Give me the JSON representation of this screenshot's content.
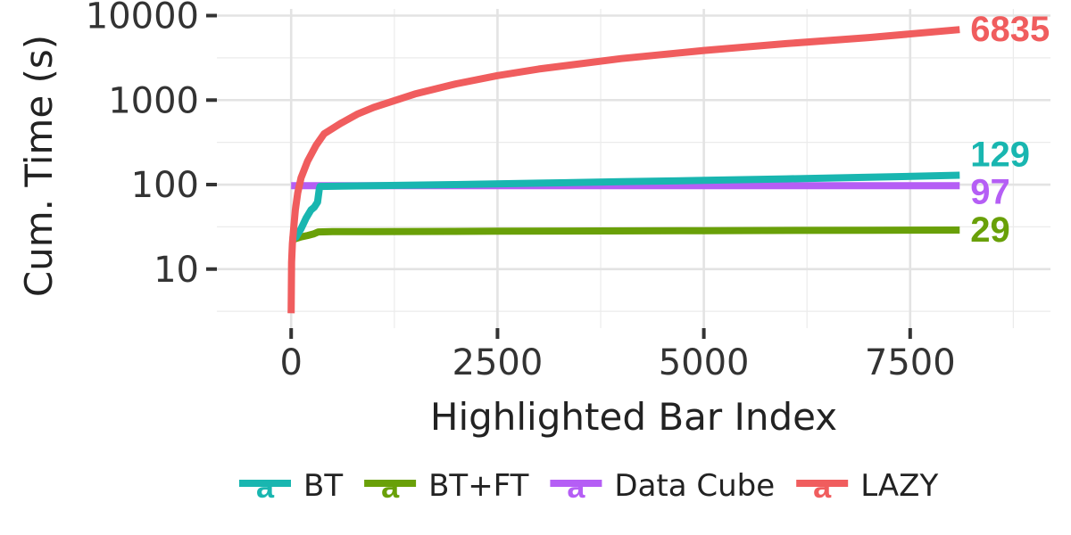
{
  "chart_data": {
    "type": "line",
    "title": "",
    "xlabel": "Highlighted Bar Index",
    "ylabel": "Cum. Time (s)",
    "xlim": [
      -900,
      9200
    ],
    "ylim": [
      2,
      12000
    ],
    "y_scale": "log10",
    "grid": true,
    "legend_position": "bottom",
    "x_ticks": [
      0,
      2500,
      5000,
      7500
    ],
    "x_tick_labels": [
      "0",
      "2500",
      "5000",
      "7500"
    ],
    "y_ticks": [
      10,
      100,
      1000,
      10000
    ],
    "y_tick_labels": [
      "10",
      "100",
      "1000",
      "10000"
    ],
    "series": [
      {
        "name": "BT",
        "color": "#19b6b0",
        "end_label": "129",
        "points": [
          [
            0,
            22
          ],
          [
            60,
            24
          ],
          [
            120,
            30
          ],
          [
            180,
            40
          ],
          [
            240,
            50
          ],
          [
            280,
            54
          ],
          [
            320,
            62
          ],
          [
            340,
            88
          ],
          [
            350,
            95
          ],
          [
            1000,
            97
          ],
          [
            2000,
            100
          ],
          [
            3000,
            104
          ],
          [
            4000,
            108
          ],
          [
            5000,
            112
          ],
          [
            6000,
            117
          ],
          [
            7000,
            122
          ],
          [
            8100,
            129
          ]
        ]
      },
      {
        "name": "BT+FT",
        "color": "#69a008",
        "end_label": "29",
        "points": [
          [
            0,
            22
          ],
          [
            60,
            23
          ],
          [
            120,
            24
          ],
          [
            200,
            25
          ],
          [
            270,
            26
          ],
          [
            330,
            27.5
          ],
          [
            500,
            27.7
          ],
          [
            1000,
            27.8
          ],
          [
            2500,
            28.1
          ],
          [
            5000,
            28.5
          ],
          [
            7000,
            28.8
          ],
          [
            8100,
            29
          ]
        ]
      },
      {
        "name": "Data Cube",
        "color": "#b55ef5",
        "end_label": "97",
        "points": [
          [
            0,
            97
          ],
          [
            1000,
            97
          ],
          [
            2500,
            97
          ],
          [
            5000,
            97
          ],
          [
            7500,
            97
          ],
          [
            8100,
            97
          ]
        ]
      },
      {
        "name": "LAZY",
        "color": "#f05d5e",
        "end_label": "6835",
        "points": [
          [
            0,
            3
          ],
          [
            5,
            12
          ],
          [
            15,
            20
          ],
          [
            30,
            30
          ],
          [
            50,
            50
          ],
          [
            80,
            80
          ],
          [
            120,
            120
          ],
          [
            200,
            190
          ],
          [
            300,
            290
          ],
          [
            400,
            400
          ],
          [
            600,
            530
          ],
          [
            800,
            680
          ],
          [
            1000,
            820
          ],
          [
            1500,
            1180
          ],
          [
            2000,
            1560
          ],
          [
            2500,
            1950
          ],
          [
            3000,
            2330
          ],
          [
            4000,
            3100
          ],
          [
            5000,
            3870
          ],
          [
            6000,
            4660
          ],
          [
            7000,
            5500
          ],
          [
            8100,
            6835
          ]
        ]
      }
    ]
  }
}
